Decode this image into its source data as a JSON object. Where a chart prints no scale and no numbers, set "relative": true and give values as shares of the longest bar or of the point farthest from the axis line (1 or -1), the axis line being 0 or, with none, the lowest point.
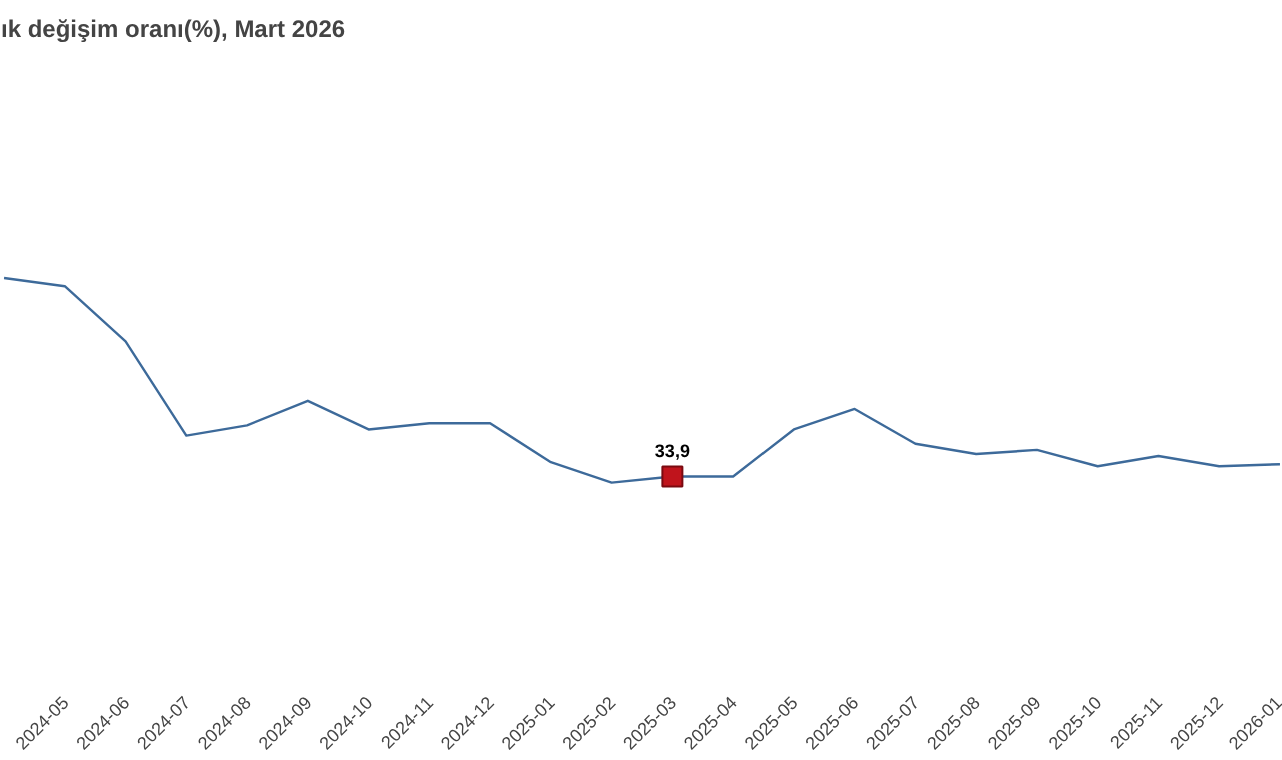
{
  "chart_data": {
    "type": "line",
    "title": "ık değişim oranı(%), Mart 2026",
    "relative": true,
    "categories": [
      null,
      "2024-05",
      "2024-06",
      "2024-07",
      "2024-08",
      "2024-09",
      "2024-10",
      "2024-11",
      "2024-12",
      "2025-01",
      "2025-02",
      "2025-03",
      "2025-04",
      "2025-05",
      "2025-06",
      "2025-07",
      "2025-08",
      "2025-09",
      "2025-10",
      "2025-11",
      "2025-12",
      "2026-01"
    ],
    "grid": false,
    "series": [
      {
        "color": "#3d6a9a",
        "values": [
          1.0,
          0.96,
          0.69,
          0.23,
          0.28,
          0.4,
          0.26,
          0.29,
          0.29,
          0.1,
          0,
          0.03,
          0.03,
          0.26,
          0.36,
          0.19,
          0.14,
          0.16,
          0.08,
          0.13,
          0.08,
          0.09
        ]
      }
    ],
    "annotations": [
      {
        "text": "33,9",
        "x": "2025-03",
        "y": 0.03
      }
    ]
  }
}
